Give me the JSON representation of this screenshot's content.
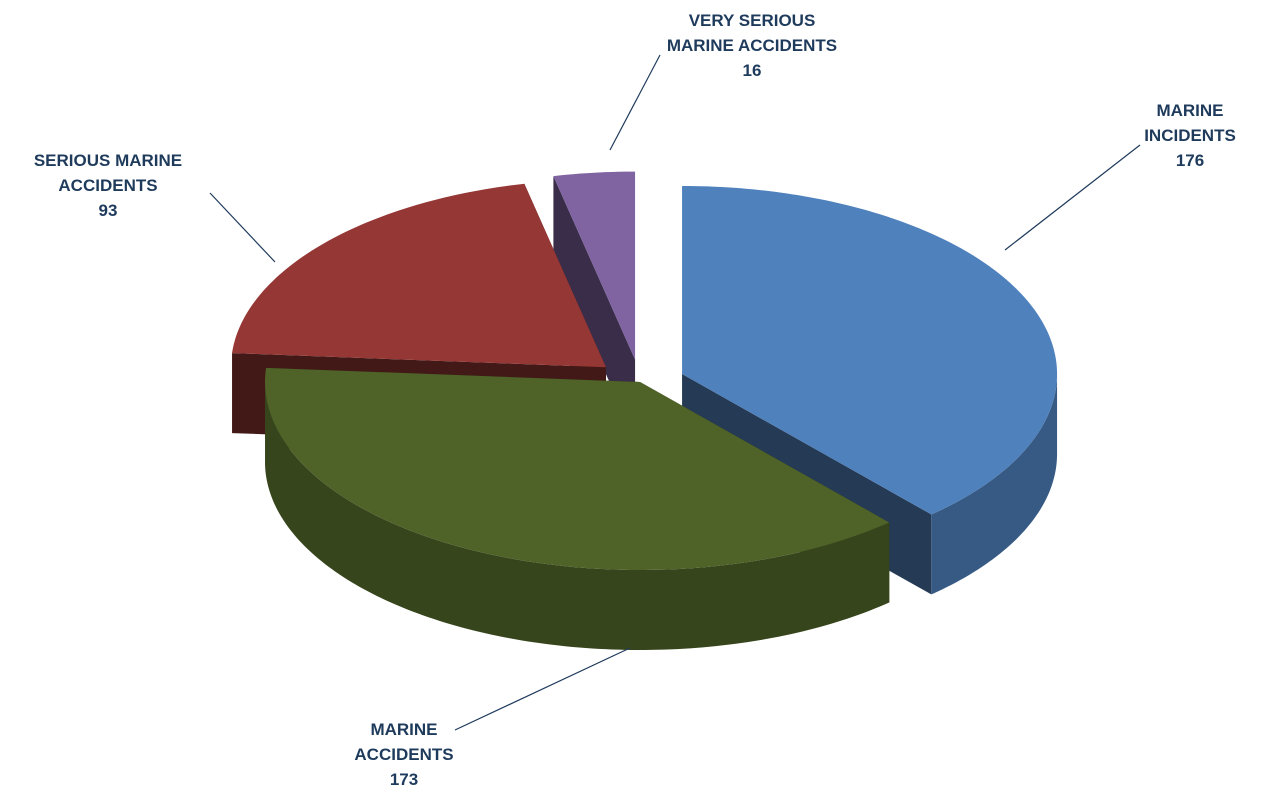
{
  "chart_data": {
    "type": "pie",
    "categories": [
      "MARINE INCIDENTS",
      "MARINE ACCIDENTS",
      "SERIOUS MARINE ACCIDENTS",
      "VERY SERIOUS MARINE ACCIDENTS"
    ],
    "values": [
      176,
      173,
      93,
      16
    ],
    "colors": [
      "#4f81bd",
      "#4f6228",
      "#953735",
      "#8064a2"
    ]
  }
}
